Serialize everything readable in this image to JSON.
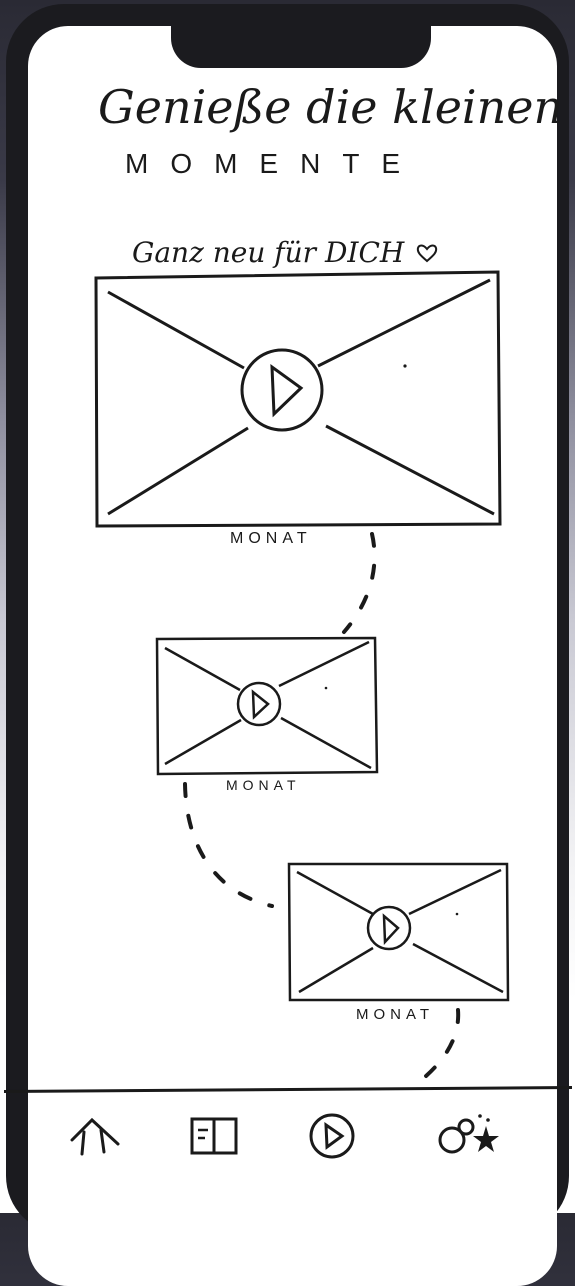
{
  "header": {
    "title": "Genieße die kleinen",
    "subtitle": "MOMENTE"
  },
  "section": {
    "title": "Ganz neu für DICH",
    "icon": "heart-icon"
  },
  "videos": [
    {
      "caption": "MONAT"
    },
    {
      "caption": "MONAT"
    },
    {
      "caption": "MONAT"
    }
  ],
  "nav": [
    {
      "name": "home",
      "icon": "home-icon"
    },
    {
      "name": "book",
      "icon": "book-icon"
    },
    {
      "name": "play",
      "icon": "play-icon"
    },
    {
      "name": "profile",
      "icon": "profile-star-icon"
    }
  ]
}
